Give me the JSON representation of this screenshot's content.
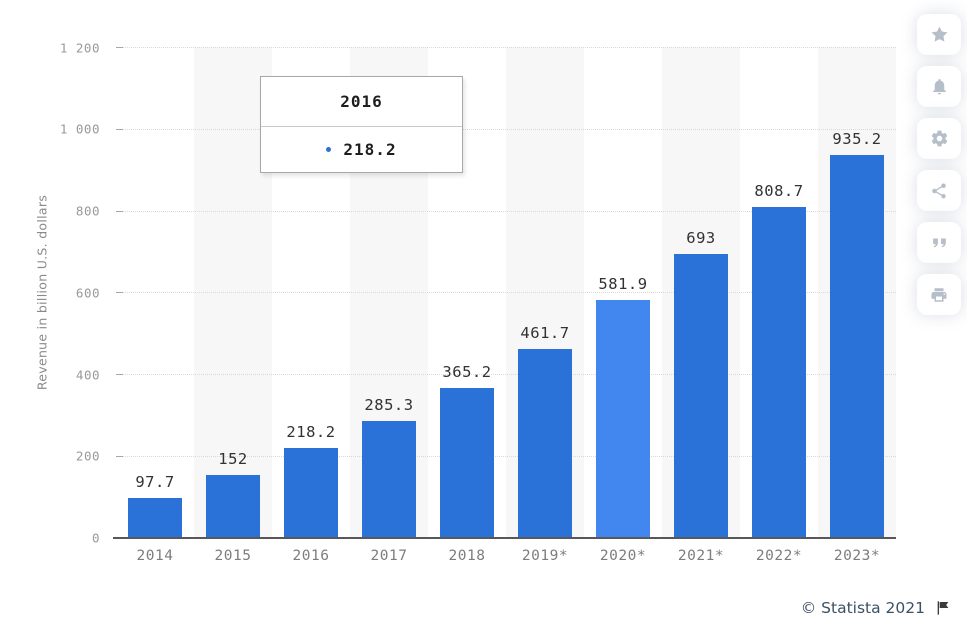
{
  "chart_data": {
    "type": "bar",
    "title": "",
    "ylabel": "Revenue in billion U.S. dollars",
    "xlabel": "",
    "categories": [
      "2014",
      "2015",
      "2016",
      "2017",
      "2018",
      "2019*",
      "2020*",
      "2021*",
      "2022*",
      "2023*"
    ],
    "values": [
      97.7,
      152,
      218.2,
      285.3,
      365.2,
      461.7,
      581.9,
      693,
      808.7,
      935.2
    ],
    "value_labels": [
      "97.7",
      "152",
      "218.2",
      "285.3",
      "365.2",
      "461.7",
      "581.9",
      "693",
      "808.7",
      "935.2"
    ],
    "ylim": [
      0,
      1200
    ],
    "ytick_values": [
      0,
      200,
      400,
      600,
      800,
      1000,
      1200
    ],
    "ytick_labels": [
      "0",
      "200",
      "400",
      "600",
      "800",
      "1 000",
      "1 200"
    ],
    "grid": true,
    "legend": false,
    "striped_columns": "every-other",
    "highlighted_index": 6,
    "colors": {
      "bar": "#2b72d8",
      "bar_highlight": "#4286ef",
      "stripe": "#f7f7f8",
      "gridline": "#d9d9d9",
      "grid_tick": "#a6a6a6",
      "baseline": "#58585a",
      "value_label": "#323232",
      "x_label": "#7d7d7d",
      "y_tick_label": "#999999"
    }
  },
  "tooltip": {
    "year": "2016",
    "value": "218.2",
    "dot_color": "#2b72d8"
  },
  "sidebar": {
    "buttons": [
      {
        "name": "favorite-button",
        "icon": "star-icon"
      },
      {
        "name": "notifications-button",
        "icon": "bell-icon"
      },
      {
        "name": "settings-button",
        "icon": "gear-icon"
      },
      {
        "name": "share-button",
        "icon": "share-icon"
      },
      {
        "name": "cite-button",
        "icon": "quote-icon"
      },
      {
        "name": "print-button",
        "icon": "printer-icon"
      }
    ]
  },
  "footer": {
    "copyright": "© Statista 2021",
    "flag": "flag-icon"
  }
}
